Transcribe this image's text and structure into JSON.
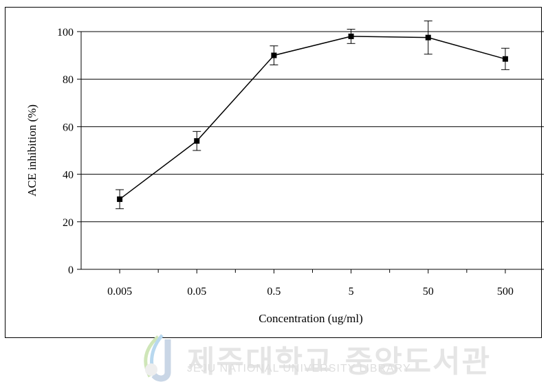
{
  "chart_data": {
    "type": "line",
    "title": "",
    "xlabel": "Concentration (ug/ml)",
    "ylabel": "ACE inhibition (%)",
    "categories": [
      "0.005",
      "0.05",
      "0.5",
      "5",
      "50",
      "500"
    ],
    "ylim": [
      0,
      100
    ],
    "yticks": [
      0,
      20,
      40,
      60,
      80,
      100
    ],
    "grid": true,
    "legend": "none",
    "series": [
      {
        "values": [
          29.5,
          54,
          90,
          98,
          97.5,
          88.5
        ],
        "error": [
          4,
          4,
          4,
          3,
          7,
          4.5
        ]
      }
    ]
  },
  "watermark": {
    "title": "제주대학교 중앙도서관",
    "subtitle": "JEJU NATIONAL UNIVERSITY LIBRARY",
    "logo_text": "JEJU"
  },
  "colors": {
    "line": "#000000",
    "grid": "#000000",
    "watermark": "#e5e5e5"
  }
}
